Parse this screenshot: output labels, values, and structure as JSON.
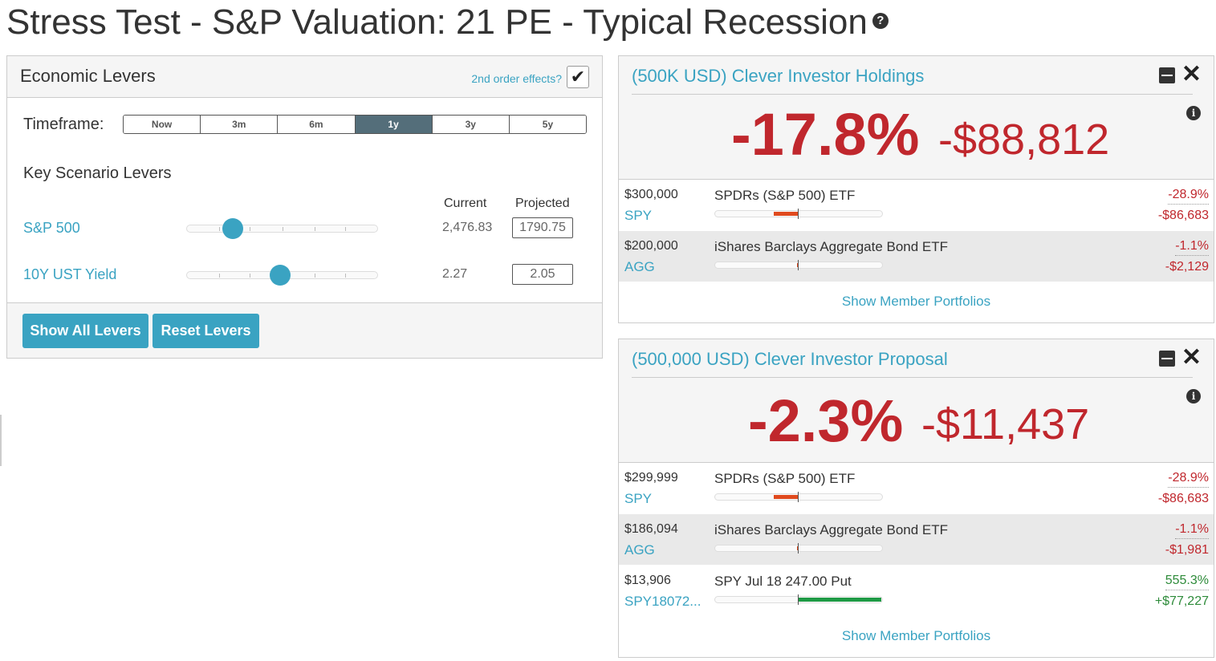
{
  "page": {
    "title": "Stress Test - S&P Valuation: 21 PE - Typical Recession",
    "help_icon": "question-circle-icon"
  },
  "levers": {
    "title": "Economic Levers",
    "second_order_label": "2nd order effects?",
    "second_order_checked": true,
    "timeframe_label": "Timeframe:",
    "timeframes": [
      "Now",
      "3m",
      "6m",
      "1y",
      "3y",
      "5y"
    ],
    "active_timeframe": "1y",
    "section_title": "Key Scenario Levers",
    "col_current": "Current",
    "col_projected": "Projected",
    "items": [
      {
        "label": "S&P 500",
        "current": "2,476.83",
        "projected": "1790.75",
        "slider_level": 0.24
      },
      {
        "label": "10Y UST Yield",
        "current": "2.27",
        "projected": "2.05",
        "slider_level": 0.49
      }
    ],
    "show_all_label": "Show All Levers",
    "reset_label": "Reset Levers"
  },
  "cards": [
    {
      "title": "(500K USD) Clever Investor Holdings",
      "pct": "-17.8%",
      "amount": "-$88,812",
      "holdings": [
        {
          "value": "$300,000",
          "ticker": "SPY",
          "name": "SPDRs (S&P 500) ETF",
          "pct": "-28.9%",
          "amount": "-$86,683",
          "tone": "neg",
          "bar_level": -0.289,
          "color": "#e04a1e"
        },
        {
          "value": "$200,000",
          "ticker": "AGG",
          "name": "iShares Barclays Aggregate Bond ETF",
          "pct": "-1.1%",
          "amount": "-$2,129",
          "tone": "neg",
          "bar_level": -0.011,
          "color": "#e04a1e"
        }
      ],
      "footer_link": "Show Member Portfolios"
    },
    {
      "title": "(500,000 USD) Clever Investor Proposal",
      "pct": "-2.3%",
      "amount": "-$11,437",
      "holdings": [
        {
          "value": "$299,999",
          "ticker": "SPY",
          "name": "SPDRs (S&P 500) ETF",
          "pct": "-28.9%",
          "amount": "-$86,683",
          "tone": "neg",
          "bar_level": -0.289,
          "color": "#e04a1e"
        },
        {
          "value": "$186,094",
          "ticker": "AGG",
          "name": "iShares Barclays Aggregate Bond ETF",
          "pct": "-1.1%",
          "amount": "-$1,981",
          "tone": "neg",
          "bar_level": -0.011,
          "color": "#e04a1e"
        },
        {
          "value": "$13,906",
          "ticker": "SPY18072...",
          "name": "SPY Jul 18 247.00 Put",
          "pct": "555.3%",
          "amount": "+$77,227",
          "tone": "pos",
          "bar_level": 1.0,
          "color": "#1e9a45"
        }
      ],
      "footer_link": "Show Member Portfolios"
    }
  ]
}
